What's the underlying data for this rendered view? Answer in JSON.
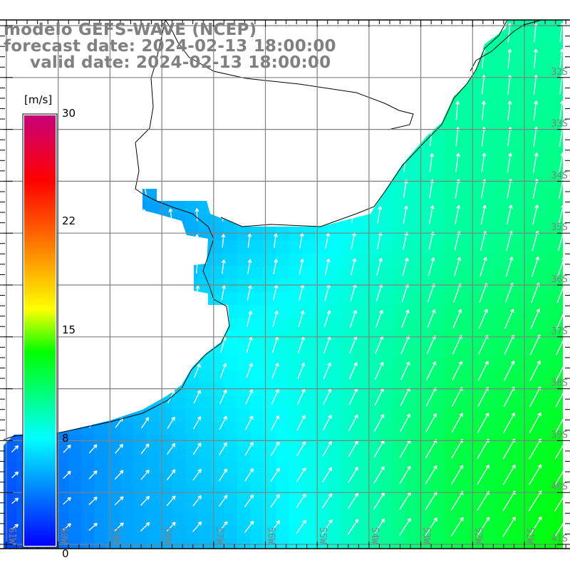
{
  "title": {
    "model": "modelo GEFS-WAVE (NCEP)",
    "forecast": "forecast date: 2024-02-13 18:00:00",
    "valid": "valid date: 2024-02-13 18:00:00"
  },
  "colorbar": {
    "units": "[m/s]",
    "ticks": [
      "30",
      "22",
      "15",
      "8",
      "0"
    ],
    "tick_values": [
      30,
      22,
      15,
      8,
      0
    ]
  },
  "axes": {
    "lat_labels": [
      "32S",
      "33S",
      "34S",
      "35S",
      "36S",
      "37S",
      "38S",
      "39S",
      "40S",
      "41S"
    ],
    "lon_labels": [
      "61W",
      "60W",
      "59W",
      "58W",
      "57W",
      "56W",
      "55W",
      "54W",
      "53W",
      "52W",
      "51W"
    ]
  },
  "field": {
    "variable": "wind speed",
    "units": "m/s",
    "speed_grid_rows_north_to_south": [
      [
        6,
        6,
        6,
        8,
        10,
        10
      ],
      [
        5,
        6,
        7,
        8,
        10,
        10.5
      ],
      [
        4,
        4,
        6,
        8,
        10,
        11
      ],
      [
        5,
        6,
        8,
        9,
        11,
        12
      ],
      [
        3,
        5,
        7,
        9,
        12,
        13
      ],
      [
        2,
        5,
        6,
        9,
        12,
        13.5
      ]
    ],
    "direction_grid_deg_from_north": [
      [
        0,
        0,
        0,
        0,
        5,
        5
      ],
      [
        -10,
        -10,
        0,
        5,
        5,
        8
      ],
      [
        -20,
        -20,
        5,
        10,
        12,
        15
      ],
      [
        30,
        20,
        15,
        20,
        25,
        25
      ],
      [
        45,
        40,
        30,
        30,
        30,
        30
      ],
      [
        55,
        50,
        40,
        35,
        33,
        33
      ]
    ]
  },
  "colors": {
    "ramp": [
      "#0000ff",
      "#00ffff",
      "#00ff00",
      "#ffff00",
      "#ff6000",
      "#ff0000",
      "#c8007a"
    ],
    "grid": "#808080",
    "land": "#ffffff",
    "coast": "#000000",
    "label": "#808080"
  }
}
